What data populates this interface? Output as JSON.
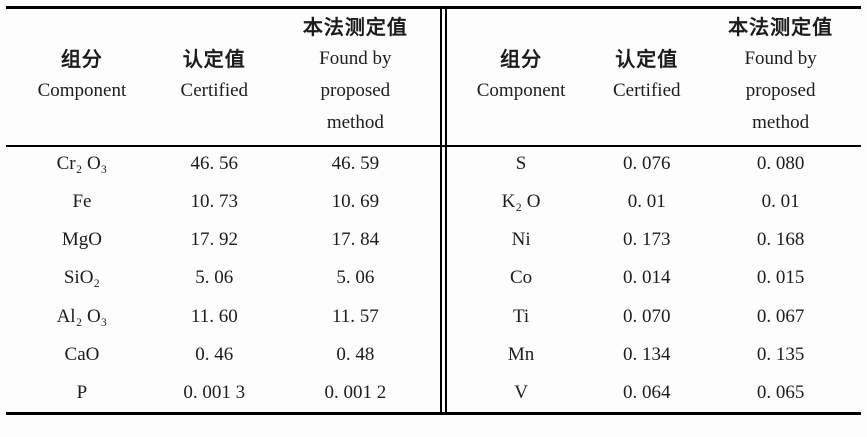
{
  "colors": {
    "background": "#fdfdfd",
    "text": "#1c1c1c",
    "rule": "#000000"
  },
  "header": {
    "component_zh": "组分",
    "component_en": "Component",
    "certified_zh": "认定值",
    "certified_en": "Certified",
    "found_zh": "本法测定值",
    "found_en_line1": "Found by",
    "found_en_line2": "proposed",
    "found_en_line3": "method"
  },
  "left_table": {
    "rows": [
      {
        "component": "Cr₂ O₃",
        "certified": "46. 56",
        "found": "46. 59"
      },
      {
        "component": "Fe",
        "certified": "10. 73",
        "found": "10. 69"
      },
      {
        "component": "MgO",
        "certified": "17. 92",
        "found": "17. 84"
      },
      {
        "component": "SiO₂",
        "certified": "5. 06",
        "found": "5. 06"
      },
      {
        "component": "Al₂ O₃",
        "certified": "11. 60",
        "found": "11. 57"
      },
      {
        "component": "CaO",
        "certified": "0. 46",
        "found": "0. 48"
      },
      {
        "component": "P",
        "certified": "0. 001 3",
        "found": "0. 001 2"
      }
    ]
  },
  "right_table": {
    "rows": [
      {
        "component": "S",
        "certified": "0. 076",
        "found": "0. 080"
      },
      {
        "component": "K₂ O",
        "certified": "0. 01",
        "found": "0. 01"
      },
      {
        "component": "Ni",
        "certified": "0. 173",
        "found": "0. 168"
      },
      {
        "component": "Co",
        "certified": "0. 014",
        "found": "0. 015"
      },
      {
        "component": "Ti",
        "certified": "0. 070",
        "found": "0. 067"
      },
      {
        "component": "Mn",
        "certified": "0. 134",
        "found": "0. 135"
      },
      {
        "component": "V",
        "certified": "0. 064",
        "found": "0. 065"
      }
    ]
  }
}
